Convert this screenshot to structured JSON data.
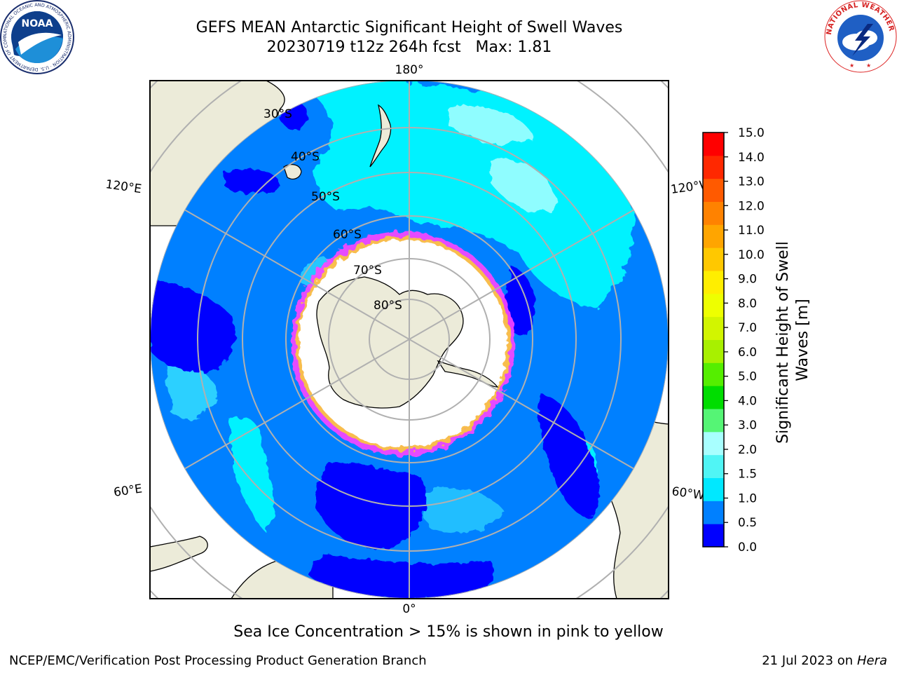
{
  "title": {
    "line1": "GEFS MEAN Antarctic Significant Height of Swell Waves",
    "line2": "20230719 t12z 264h fcst   Max: 1.81"
  },
  "logos": {
    "left": {
      "text": "NOAA",
      "ring_text": "NATIONAL OCEANIC AND ATMOSPHERIC ADMINISTRATION · U.S. DEPARTMENT OF COMMERCE"
    },
    "right": {
      "ring_text": "NATIONAL WEATHER SERVICE"
    }
  },
  "map": {
    "projection": "south-polar-stereographic",
    "longitude_labels": {
      "top": "180°",
      "bottom": "0°",
      "upper_left": "120°E",
      "lower_left": "60°E",
      "upper_right": "120°W",
      "lower_right": "60°W"
    },
    "latitude_labels": [
      "30°S",
      "40°S",
      "50°S",
      "60°S",
      "70°S",
      "80°S"
    ],
    "colors": {
      "land": "#ecebd9",
      "sea_ice_low": "#ff44ff",
      "sea_ice_high": "#ffee00",
      "grid": "#b0b0b0"
    }
  },
  "colorbar": {
    "label": "Significant Height of Swell Waves [m]",
    "label_lines": [
      "Significant Height of Swell",
      "Waves [m]"
    ],
    "ticks": [
      "0.0",
      "0.5",
      "1.0",
      "1.5",
      "2.0",
      "3.0",
      "4.0",
      "5.0",
      "6.0",
      "7.0",
      "8.0",
      "9.0",
      "10.0",
      "11.0",
      "12.0",
      "13.0",
      "14.0",
      "15.0"
    ],
    "colors": [
      "#0000ff",
      "#0080ff",
      "#00e8ff",
      "#50f5f5",
      "#a8ffff",
      "#55f575",
      "#00dd00",
      "#55ee00",
      "#a8f000",
      "#d2f500",
      "#eeff00",
      "#ffee00",
      "#ffc800",
      "#ffa500",
      "#ff8200",
      "#ff5a00",
      "#ff2800",
      "#ff0000"
    ]
  },
  "caption": "Sea Ice Concentration > 15% is shown in pink to yellow",
  "footer": {
    "credit": "NCEP/EMC/Verification Post Processing Product Generation Branch",
    "date_prefix": "21 Jul 2023 on ",
    "date_machine": "Hera"
  }
}
